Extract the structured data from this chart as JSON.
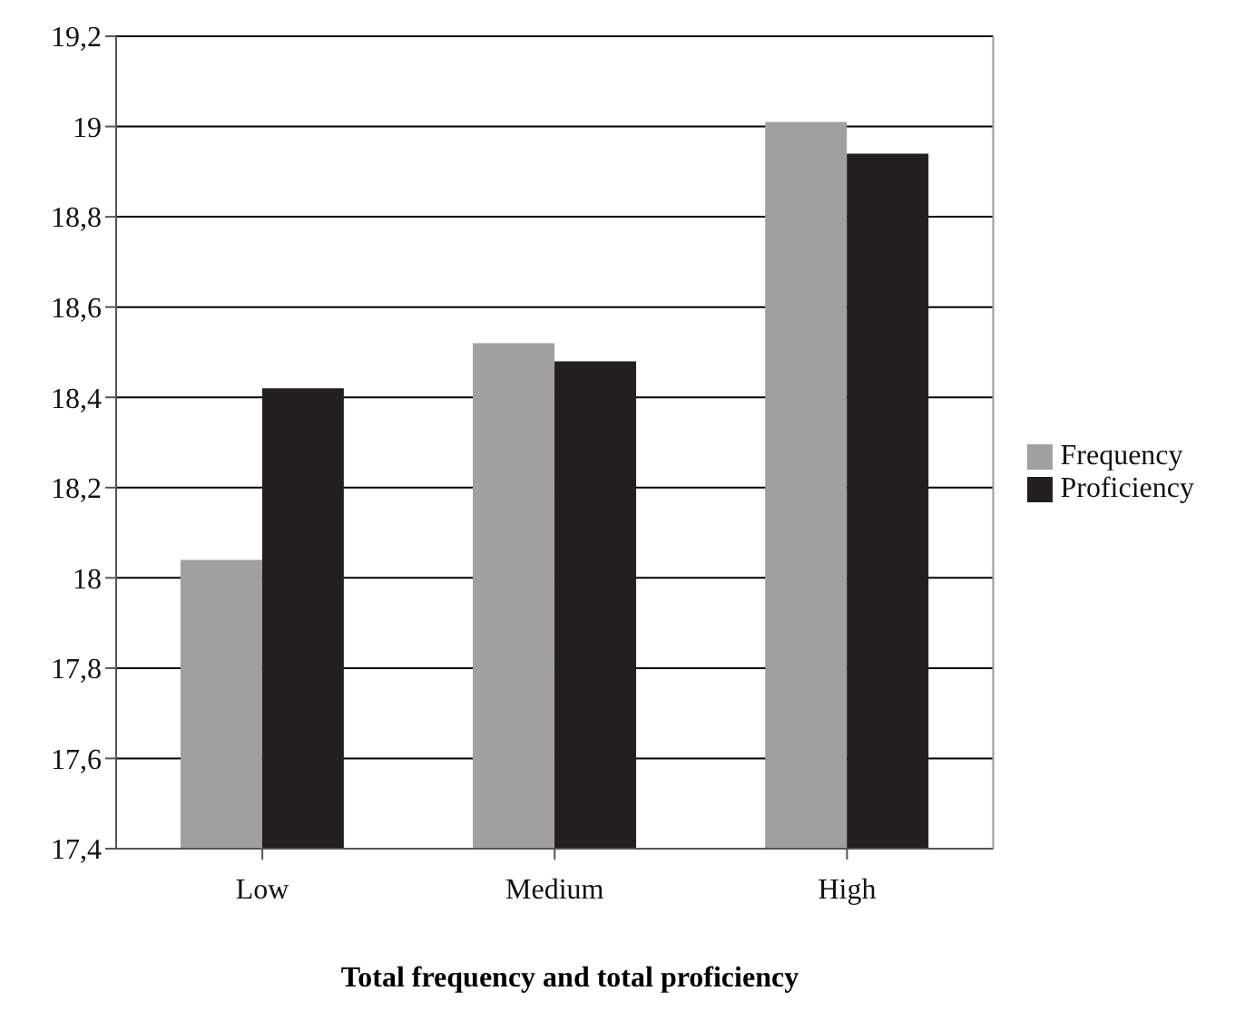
{
  "chart_data": {
    "type": "bar",
    "xlabel": "Total frequency and total proficiency",
    "categories": [
      "Low",
      "Medium",
      "High"
    ],
    "series": [
      {
        "name": "Frequency",
        "color": "#a0a0a0",
        "values": [
          18.04,
          18.52,
          19.01
        ]
      },
      {
        "name": "Proficiency",
        "color": "#231f20",
        "values": [
          18.42,
          18.48,
          18.94
        ]
      }
    ],
    "ylim": [
      17.4,
      19.2
    ],
    "yticks": [
      {
        "value": 17.4,
        "label": "17,4"
      },
      {
        "value": 17.6,
        "label": "17,6"
      },
      {
        "value": 17.8,
        "label": "17,8"
      },
      {
        "value": 18,
        "label": "18"
      },
      {
        "value": 18.2,
        "label": "18,2"
      },
      {
        "value": 18.4,
        "label": "18,4"
      },
      {
        "value": 18.6,
        "label": "18,6"
      },
      {
        "value": 18.8,
        "label": "18,8"
      },
      {
        "value": 19,
        "label": "19"
      },
      {
        "value": 19.2,
        "label": "19,2"
      }
    ],
    "grid": "y",
    "legend": "right"
  }
}
